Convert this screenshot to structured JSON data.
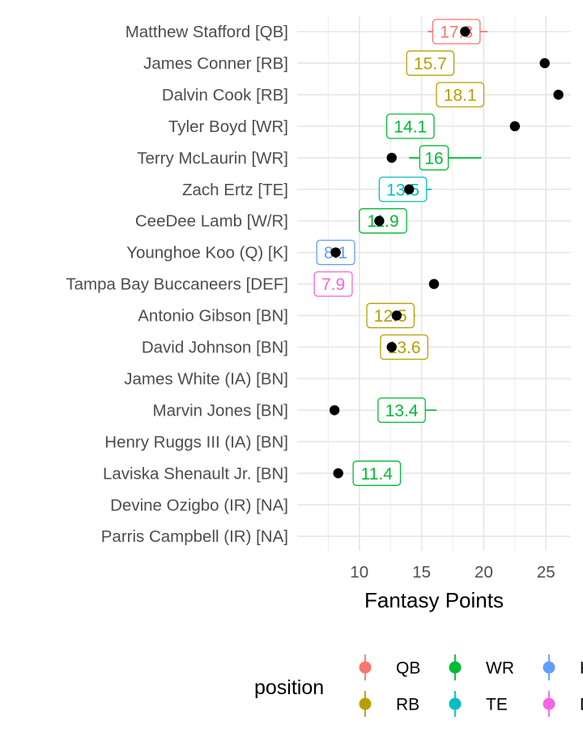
{
  "chart_data": {
    "type": "scatter",
    "title": "",
    "xlabel": "Fantasy Points",
    "ylabel": "",
    "xlim": [
      5,
      27
    ],
    "x_ticks": [
      10,
      15,
      20,
      25
    ],
    "grid": true,
    "legend": {
      "title": "position",
      "placement": "bottom",
      "entries": [
        {
          "label": "QB",
          "color": "#F8766D"
        },
        {
          "label": "RB",
          "color": "#B79F00"
        },
        {
          "label": "WR",
          "color": "#00BA38"
        },
        {
          "label": "TE",
          "color": "#00BFC4"
        },
        {
          "label": "K",
          "color": "#619CFF"
        },
        {
          "label": "DEF",
          "color": "#F564E3"
        }
      ]
    },
    "players": [
      {
        "name": "Matthew Stafford [QB]",
        "position": "QB",
        "projection": 17.8,
        "range": [
          15.5,
          20.3
        ],
        "actual": 18.5
      },
      {
        "name": "James Conner [RB]",
        "position": "RB",
        "projection": 15.7,
        "range": null,
        "actual": 24.9
      },
      {
        "name": "Dalvin Cook [RB]",
        "position": "RB",
        "projection": 18.1,
        "range": null,
        "actual": 26.0
      },
      {
        "name": "Tyler Boyd [WR]",
        "position": "WR",
        "projection": 14.1,
        "range": [
          12.5,
          16.0
        ],
        "actual": 22.5
      },
      {
        "name": "Terry McLaurin [WR]",
        "position": "WR",
        "projection": 16,
        "range": [
          14.0,
          19.8
        ],
        "actual": 12.6
      },
      {
        "name": "Zach Ertz [TE]",
        "position": "TE",
        "projection": 13.5,
        "range": [
          12.5,
          15.8
        ],
        "actual": 14.0
      },
      {
        "name": "CeeDee Lamb [W/R]",
        "position": "WR",
        "projection": 11.9,
        "range": [
          10.5,
          13.5
        ],
        "actual": 11.6
      },
      {
        "name": "Younghoe Koo (Q) [K]",
        "position": "K",
        "projection": 8.1,
        "range": [
          7.5,
          9.0
        ],
        "actual": 8.1
      },
      {
        "name": "Tampa Bay Buccaneers [DEF]",
        "position": "DEF",
        "projection": 7.9,
        "range": [
          6.5,
          9.0
        ],
        "actual": 16.0
      },
      {
        "name": "Antonio Gibson [BN]",
        "position": "RB",
        "projection": 12.5,
        "range": [
          11.5,
          14.5
        ],
        "actual": 13.0
      },
      {
        "name": "David Johnson [BN]",
        "position": "RB",
        "projection": 13.6,
        "range": [
          12.5,
          14.5
        ],
        "actual": 12.6
      },
      {
        "name": "James White (IA) [BN]",
        "position": "RB",
        "projection": null,
        "range": null,
        "actual": null
      },
      {
        "name": "Marvin Jones [BN]",
        "position": "WR",
        "projection": 13.4,
        "range": [
          11.5,
          16.2
        ],
        "actual": 8.0
      },
      {
        "name": "Henry Ruggs III (IA) [BN]",
        "position": "WR",
        "projection": null,
        "range": null,
        "actual": null
      },
      {
        "name": "Laviska Shenault Jr. [BN]",
        "position": "WR",
        "projection": 11.4,
        "range": [
          9.5,
          13.0
        ],
        "actual": 8.3
      },
      {
        "name": "Devine Ozigbo (IR) [NA]",
        "position": "RB",
        "projection": null,
        "range": null,
        "actual": null
      },
      {
        "name": "Parris Campbell (IR) [NA]",
        "position": "WR",
        "projection": null,
        "range": null,
        "actual": null
      }
    ]
  }
}
